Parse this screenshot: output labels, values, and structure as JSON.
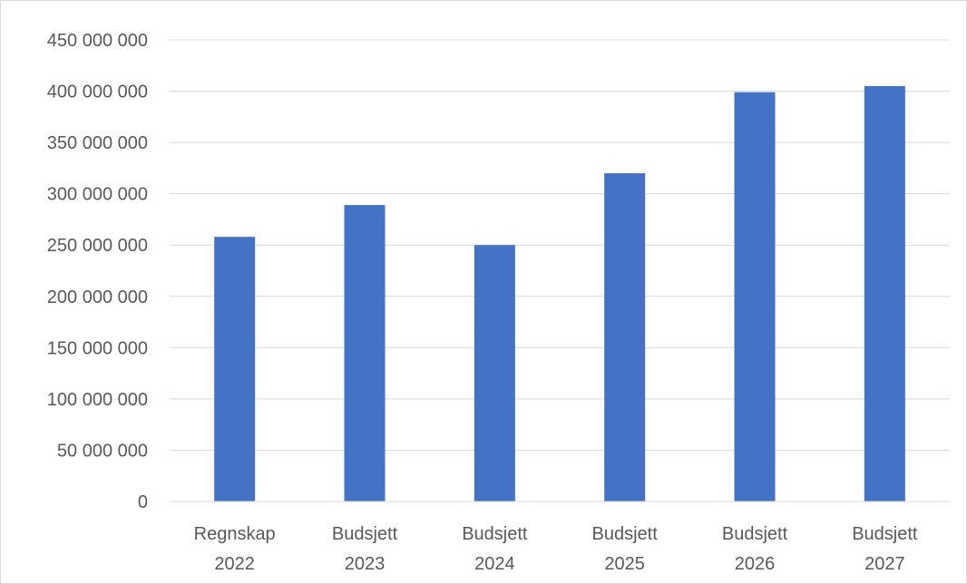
{
  "chart_data": {
    "type": "bar",
    "categories": [
      [
        "Regnskap",
        "2022"
      ],
      [
        "Budsjett",
        "2023"
      ],
      [
        "Budsjett",
        "2024"
      ],
      [
        "Budsjett",
        "2025"
      ],
      [
        "Budsjett",
        "2026"
      ],
      [
        "Budsjett",
        "2027"
      ]
    ],
    "values": [
      258000000,
      289000000,
      250000000,
      320000000,
      399000000,
      405000000
    ],
    "title": "",
    "xlabel": "",
    "ylabel": "",
    "ylim": [
      0,
      450000000
    ],
    "y_ticks": [
      0,
      50000000,
      100000000,
      150000000,
      200000000,
      250000000,
      300000000,
      350000000,
      400000000,
      450000000
    ],
    "y_tick_labels": [
      "0",
      "50 000 000",
      "100 000 000",
      "150 000 000",
      "200 000 000",
      "250 000 000",
      "300 000 000",
      "350 000 000",
      "400 000 000",
      "450 000 000"
    ],
    "bar_color": "#4472C4",
    "gridline_color": "#d9d9d9",
    "grid": true,
    "legend": "none"
  }
}
